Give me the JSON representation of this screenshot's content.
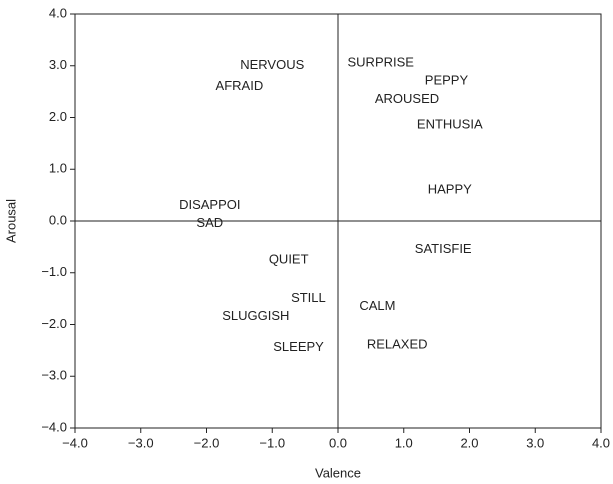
{
  "chart_data": {
    "type": "scatter",
    "x_label": "Valence",
    "y_label": "Arousal",
    "points": [
      {
        "label": "NERVOUS",
        "x": -1.0,
        "y": 3.0
      },
      {
        "label": "AFRAID",
        "x": -1.5,
        "y": 2.6
      },
      {
        "label": "SURPRISE",
        "x": 0.65,
        "y": 3.05
      },
      {
        "label": "PEPPY",
        "x": 1.65,
        "y": 2.7
      },
      {
        "label": "AROUSED",
        "x": 1.05,
        "y": 2.35
      },
      {
        "label": "ENTHUSIA",
        "x": 1.7,
        "y": 1.85
      },
      {
        "label": "HAPPY",
        "x": 1.7,
        "y": 0.6
      },
      {
        "label": "DISAPPOI",
        "x": -1.95,
        "y": 0.3
      },
      {
        "label": "SAD",
        "x": -1.95,
        "y": -0.05
      },
      {
        "label": "QUIET",
        "x": -0.75,
        "y": -0.75
      },
      {
        "label": "SATISFIE",
        "x": 1.6,
        "y": -0.55
      },
      {
        "label": "STILL",
        "x": -0.45,
        "y": -1.5
      },
      {
        "label": "SLUGGISH",
        "x": -1.25,
        "y": -1.85
      },
      {
        "label": "CALM",
        "x": 0.6,
        "y": -1.65
      },
      {
        "label": "SLEEPY",
        "x": -0.6,
        "y": -2.45
      },
      {
        "label": "RELAXED",
        "x": 0.9,
        "y": -2.4
      }
    ],
    "color": "#222222",
    "xlim": [
      -4,
      4
    ],
    "xticks": [
      {
        "value": -4,
        "label": "−4.0"
      },
      {
        "value": -3,
        "label": "−3.0"
      },
      {
        "value": -2,
        "label": "−2.0"
      },
      {
        "value": -1,
        "label": "−1.0"
      },
      {
        "value": 0,
        "label": "0.0"
      },
      {
        "value": 1,
        "label": "1.0"
      },
      {
        "value": 2,
        "label": "2.0"
      },
      {
        "value": 3,
        "label": "3.0"
      },
      {
        "value": 4,
        "label": "4.0"
      }
    ],
    "ylim": [
      -4,
      4
    ],
    "yticks": [
      {
        "value": -4,
        "label": "−4.0"
      },
      {
        "value": -3,
        "label": "−3.0"
      },
      {
        "value": -2,
        "label": "−2.0"
      },
      {
        "value": -1,
        "label": "−1.0"
      },
      {
        "value": 0,
        "label": "0.0"
      },
      {
        "value": 1,
        "label": "1.0"
      },
      {
        "value": 2,
        "label": "2.0"
      },
      {
        "value": 3,
        "label": "3.0"
      },
      {
        "value": 4,
        "label": "4.0"
      }
    ]
  }
}
